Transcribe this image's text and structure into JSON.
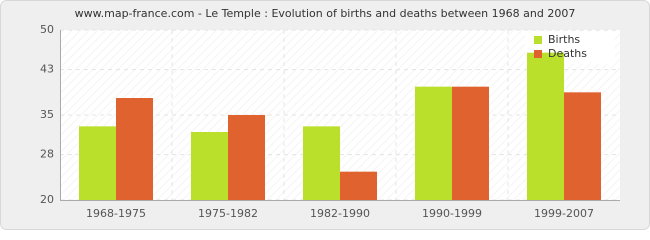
{
  "chart_data": {
    "type": "bar",
    "title": "www.map-france.com - Le Temple : Evolution of births and deaths between 1968 and 2007",
    "categories": [
      "1968-1975",
      "1975-1982",
      "1982-1990",
      "1990-1999",
      "1999-2007"
    ],
    "series": [
      {
        "name": "Births",
        "color": "#bbe02c",
        "values": [
          33,
          32,
          33,
          40,
          46
        ]
      },
      {
        "name": "Deaths",
        "color": "#e0622e",
        "values": [
          38,
          35,
          25,
          40,
          39
        ]
      }
    ],
    "ylim": [
      20,
      50
    ],
    "yticks": [
      20,
      28,
      35,
      43,
      50
    ],
    "grid": true,
    "legend": "top-right"
  }
}
